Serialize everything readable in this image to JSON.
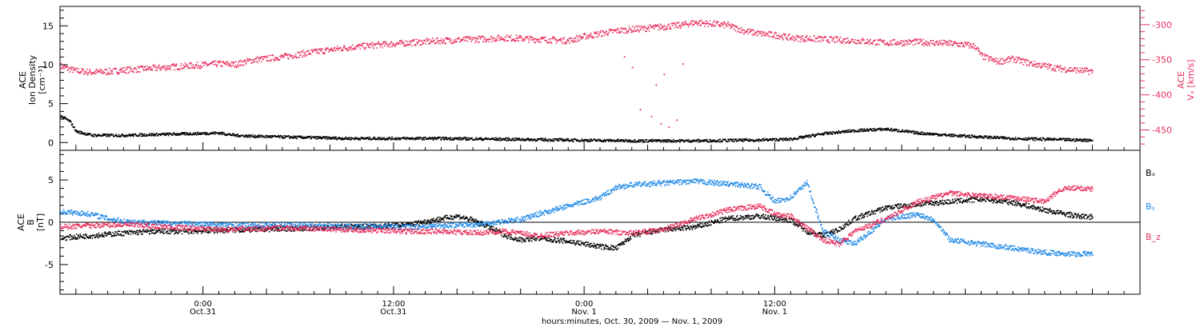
{
  "chart_data": [
    {
      "type": "scatter",
      "panel": "plasma",
      "left_axis_label": [
        "ACE",
        "Ion Density",
        "[cm⁻³]"
      ],
      "right_axis_label": [
        "ACE",
        "Vₓ [km/s]"
      ],
      "left_ylim": [
        -1,
        17.5
      ],
      "left_yticks": [
        0,
        5,
        10,
        15
      ],
      "right_ylim": [
        -479,
        -274
      ],
      "right_yticks": [
        -300,
        -350,
        -400,
        -450
      ],
      "series": [
        {
          "axis": "right",
          "color": "#e8315f",
          "points": [
            [
              0,
              -358
            ],
            [
              0.5,
              -362
            ],
            [
              1,
              -365
            ],
            [
              2,
              -367
            ],
            [
              3,
              -366
            ],
            [
              4,
              -364
            ],
            [
              6,
              -361
            ],
            [
              8,
              -358
            ],
            [
              10,
              -355
            ],
            [
              11,
              -356
            ],
            [
              12,
              -350
            ],
            [
              14,
              -345
            ],
            [
              16,
              -338
            ],
            [
              18,
              -332
            ],
            [
              20,
              -328
            ],
            [
              22,
              -325
            ],
            [
              24,
              -322
            ],
            [
              26,
              -320
            ],
            [
              28,
              -318
            ],
            [
              30,
              -320
            ],
            [
              32,
              -322
            ],
            [
              33,
              -316
            ],
            [
              34,
              -312
            ],
            [
              35,
              -308
            ],
            [
              36,
              -306
            ],
            [
              37,
              -304
            ],
            [
              38,
              -302
            ],
            [
              39,
              -300
            ],
            [
              40,
              -296
            ],
            [
              41,
              -298
            ],
            [
              42,
              -300
            ],
            [
              43,
              -308
            ],
            [
              44,
              -312
            ],
            [
              45,
              -314
            ],
            [
              46,
              -318
            ],
            [
              48,
              -320
            ],
            [
              50,
              -322
            ],
            [
              52,
              -325
            ],
            [
              54,
              -324
            ],
            [
              56,
              -326
            ],
            [
              57,
              -328
            ],
            [
              57.6,
              -330
            ],
            [
              58,
              -344
            ],
            [
              59,
              -352
            ],
            [
              60,
              -348
            ],
            [
              61,
              -354
            ],
            [
              62,
              -358
            ],
            [
              63,
              -362
            ],
            [
              64,
              -364
            ],
            [
              65,
              -366
            ]
          ],
          "outliers": [
            [
              36.5,
              -420
            ],
            [
              37.2,
              -430
            ],
            [
              37.8,
              -440
            ],
            [
              38.3,
              -445
            ],
            [
              38.8,
              -435
            ],
            [
              37.5,
              -385
            ],
            [
              38.0,
              -370
            ],
            [
              36.0,
              -360
            ],
            [
              35.5,
              -345
            ],
            [
              39.2,
              -355
            ]
          ]
        },
        {
          "axis": "left",
          "color": "#000000",
          "points": [
            [
              0,
              3.5
            ],
            [
              0.6,
              2.8
            ],
            [
              1,
              1.5
            ],
            [
              2,
              1.0
            ],
            [
              4,
              1.0
            ],
            [
              6,
              1.1
            ],
            [
              8,
              1.2
            ],
            [
              10,
              1.3
            ],
            [
              11,
              1.0
            ],
            [
              12,
              0.9
            ],
            [
              14,
              0.8
            ],
            [
              16,
              0.7
            ],
            [
              18,
              0.6
            ],
            [
              20,
              0.6
            ],
            [
              24,
              0.6
            ],
            [
              28,
              0.5
            ],
            [
              32,
              0.4
            ],
            [
              36,
              0.3
            ],
            [
              40,
              0.3
            ],
            [
              44,
              0.4
            ],
            [
              46,
              0.5
            ],
            [
              48,
              1.2
            ],
            [
              50,
              1.6
            ],
            [
              52,
              1.8
            ],
            [
              54,
              1.3
            ],
            [
              56,
              1.0
            ],
            [
              58,
              0.8
            ],
            [
              60,
              0.6
            ],
            [
              62,
              0.5
            ],
            [
              64,
              0.4
            ],
            [
              65,
              0.4
            ]
          ]
        }
      ]
    },
    {
      "type": "scatter",
      "panel": "magnetic-field",
      "left_axis_label": [
        "ACE",
        "B",
        "[nT]"
      ],
      "ylim": [
        -8.5,
        8.5
      ],
      "yticks": [
        -5,
        0,
        5
      ],
      "zero_line": true,
      "legend": [
        "Bₓ",
        "Bᵧ",
        "B_z"
      ],
      "series": [
        {
          "name": "Bₓ",
          "color": "#000000",
          "points": [
            [
              0,
              -1.8
            ],
            [
              2,
              -1.5
            ],
            [
              4,
              -1.2
            ],
            [
              6,
              -1.0
            ],
            [
              8,
              -1.0
            ],
            [
              10,
              -0.9
            ],
            [
              12,
              -0.8
            ],
            [
              14,
              -0.7
            ],
            [
              16,
              -0.6
            ],
            [
              18,
              -0.5
            ],
            [
              20,
              -0.4
            ],
            [
              22,
              -0.2
            ],
            [
              24,
              0.5
            ],
            [
              25,
              0.8
            ],
            [
              26,
              0.3
            ],
            [
              27,
              -0.5
            ],
            [
              28,
              -1.5
            ],
            [
              29,
              -2.0
            ],
            [
              30,
              -1.8
            ],
            [
              32,
              -2.2
            ],
            [
              34,
              -2.8
            ],
            [
              35,
              -3.0
            ],
            [
              36,
              -1.5
            ],
            [
              38,
              -0.8
            ],
            [
              40,
              -0.5
            ],
            [
              42,
              0.5
            ],
            [
              44,
              0.8
            ],
            [
              46,
              0.3
            ],
            [
              47,
              -1.0
            ],
            [
              48,
              -1.5
            ],
            [
              49,
              -0.8
            ],
            [
              50,
              0.5
            ],
            [
              52,
              1.8
            ],
            [
              54,
              2.2
            ],
            [
              56,
              2.5
            ],
            [
              58,
              2.8
            ],
            [
              60,
              2.4
            ],
            [
              62,
              1.5
            ],
            [
              64,
              0.8
            ],
            [
              65,
              0.7
            ]
          ]
        },
        {
          "name": "Bᵧ",
          "color": "#1e88e5",
          "points": [
            [
              0,
              1.3
            ],
            [
              1,
              1.2
            ],
            [
              2,
              1.0
            ],
            [
              3,
              0.5
            ],
            [
              4,
              0.2
            ],
            [
              6,
              0.0
            ],
            [
              8,
              -0.1
            ],
            [
              10,
              -0.2
            ],
            [
              12,
              -0.3
            ],
            [
              14,
              -0.2
            ],
            [
              16,
              -0.3
            ],
            [
              18,
              -0.4
            ],
            [
              20,
              -0.4
            ],
            [
              22,
              -0.5
            ],
            [
              24,
              -0.3
            ],
            [
              26,
              -0.2
            ],
            [
              28,
              0.2
            ],
            [
              29,
              0.4
            ],
            [
              30,
              1.0
            ],
            [
              31,
              1.5
            ],
            [
              32,
              2.0
            ],
            [
              33,
              2.5
            ],
            [
              34,
              3.0
            ],
            [
              35,
              4.2
            ],
            [
              36,
              4.5
            ],
            [
              38,
              4.7
            ],
            [
              40,
              4.9
            ],
            [
              42,
              4.6
            ],
            [
              44,
              4.3
            ],
            [
              45,
              2.5
            ],
            [
              46,
              3.0
            ],
            [
              47,
              4.8
            ],
            [
              48,
              -1.0
            ],
            [
              49,
              -2.0
            ],
            [
              50,
              -2.5
            ],
            [
              52,
              0.5
            ],
            [
              54,
              1.0
            ],
            [
              55,
              0.4
            ],
            [
              56,
              -2.0
            ],
            [
              58,
              -2.5
            ],
            [
              60,
              -3.0
            ],
            [
              62,
              -3.5
            ],
            [
              64,
              -3.7
            ],
            [
              65,
              -3.6
            ]
          ]
        },
        {
          "name": "B_z",
          "color": "#e8315f",
          "points": [
            [
              0,
              -0.5
            ],
            [
              2,
              -0.3
            ],
            [
              4,
              -0.2
            ],
            [
              6,
              -0.4
            ],
            [
              8,
              -0.6
            ],
            [
              10,
              -0.8
            ],
            [
              12,
              -0.7
            ],
            [
              14,
              -0.6
            ],
            [
              16,
              -0.7
            ],
            [
              18,
              -0.8
            ],
            [
              20,
              -0.9
            ],
            [
              22,
              -1.0
            ],
            [
              24,
              -1.0
            ],
            [
              26,
              -1.2
            ],
            [
              28,
              -1.0
            ],
            [
              30,
              -1.5
            ],
            [
              32,
              -1.2
            ],
            [
              34,
              -1.0
            ],
            [
              36,
              -1.2
            ],
            [
              38,
              -0.8
            ],
            [
              40,
              0.5
            ],
            [
              42,
              1.5
            ],
            [
              44,
              2.0
            ],
            [
              45,
              1.0
            ],
            [
              46,
              0.8
            ],
            [
              48,
              -2.0
            ],
            [
              49,
              -2.5
            ],
            [
              50,
              -1.0
            ],
            [
              52,
              0.5
            ],
            [
              54,
              2.5
            ],
            [
              56,
              3.5
            ],
            [
              58,
              3.2
            ],
            [
              60,
              3.0
            ],
            [
              62,
              2.5
            ],
            [
              63,
              4.0
            ],
            [
              64,
              4.1
            ],
            [
              65,
              4.0
            ]
          ]
        }
      ]
    }
  ],
  "x_axis": {
    "range": [
      0,
      68
    ],
    "major_ticks": [
      {
        "x": 9,
        "time": "0:00",
        "date": "Oct.31"
      },
      {
        "x": 21,
        "time": "12:00",
        "date": "Oct.31"
      },
      {
        "x": 33,
        "time": "0:00",
        "date": "Nov. 1"
      },
      {
        "x": 45,
        "time": "12:00",
        "date": "Nov. 1"
      }
    ],
    "minor_step": 1,
    "medium_step": 4,
    "title": "hours:minutes, Oct. 30, 2009 — Nov.  1, 2009"
  }
}
